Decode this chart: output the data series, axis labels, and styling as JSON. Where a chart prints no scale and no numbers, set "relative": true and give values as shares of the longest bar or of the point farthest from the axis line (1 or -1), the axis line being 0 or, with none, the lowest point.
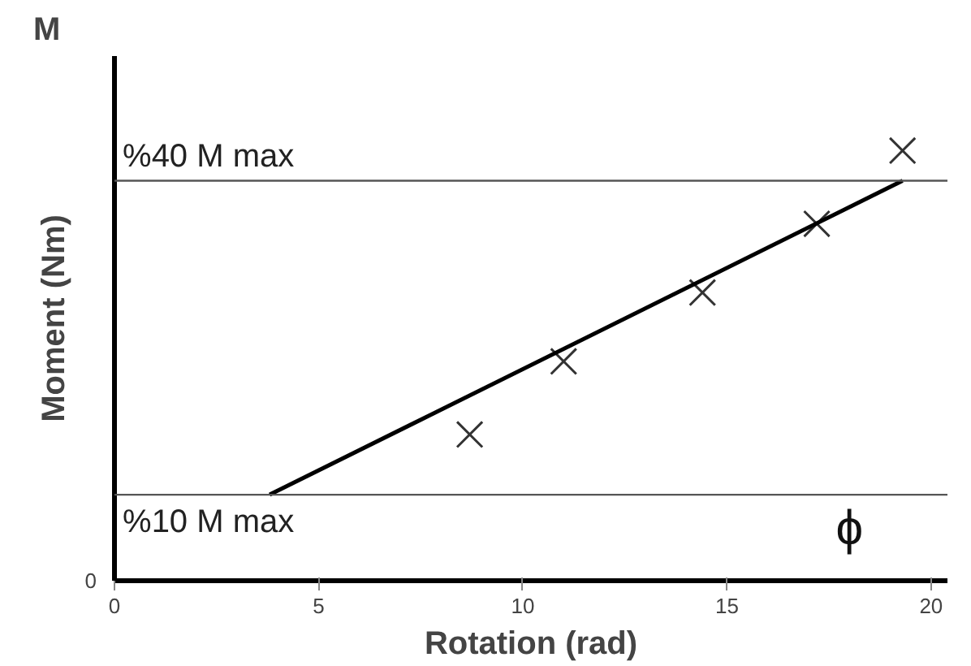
{
  "chart_data": {
    "type": "scatter",
    "xlabel": "Rotation (rad)",
    "ylabel": "Moment (Nm)",
    "relative": true,
    "xlim": [
      0,
      20.4
    ],
    "xticks": [
      0,
      5,
      10,
      15,
      20
    ],
    "series": [
      {
        "marker": "cross",
        "color": "#333333",
        "x": [
          8.7,
          11.0,
          14.4,
          17.2,
          19.3
        ],
        "values": [
          0.34,
          0.51,
          0.67,
          0.83,
          1.0
        ]
      },
      {
        "type": "line",
        "color": "#000000",
        "x": [
          3.8,
          19.3
        ],
        "values": [
          0.2,
          0.93
        ]
      }
    ],
    "ref_lines": [
      {
        "axis": "y",
        "value": 0.93,
        "label": "%40  M max",
        "color": "#555555"
      },
      {
        "axis": "y",
        "value": 0.2,
        "label": "%10 M max",
        "color": "#555555"
      }
    ],
    "annotations": [
      "M",
      "0",
      "ϕ"
    ]
  }
}
